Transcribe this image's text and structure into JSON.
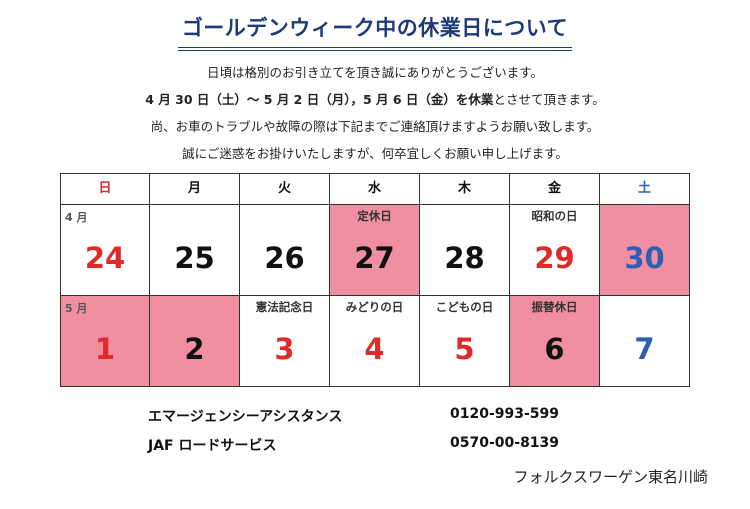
{
  "title": "ゴールデンウィーク中の休業日について",
  "notice": {
    "line1": "日頃は格別のお引き立てを頂き誠にありがとうございます。",
    "line2_bold": "4 月 30 日（土）～ 5 月 2 日（月），5 月 6 日（金）を休業",
    "line2_rest": "とさせて頂きます。",
    "line3": "尚、お車のトラブルや故障の際は下記までご連絡頂けますようお願い致します。",
    "line4": "誠にご迷惑をお掛けいたしますが、何卒宜しくお願い申し上げます。"
  },
  "calendar": {
    "weekdays": [
      "日",
      "月",
      "火",
      "水",
      "木",
      "金",
      "土"
    ],
    "weekday_colors": [
      "#e02a2a",
      "#111111",
      "#111111",
      "#111111",
      "#111111",
      "#111111",
      "#2c5fb5"
    ],
    "weeks": [
      [
        {
          "month": "4 月",
          "day": "24",
          "color": "red",
          "closed": false
        },
        {
          "day": "25",
          "color": "black",
          "closed": false
        },
        {
          "day": "26",
          "color": "black",
          "closed": false
        },
        {
          "holiday": "定休日",
          "day": "27",
          "color": "black",
          "closed": true
        },
        {
          "day": "28",
          "color": "black",
          "closed": false
        },
        {
          "holiday": "昭和の日",
          "day": "29",
          "color": "red",
          "closed": false
        },
        {
          "day": "30",
          "color": "blue",
          "closed": true
        }
      ],
      [
        {
          "month": "5 月",
          "day": "1",
          "color": "red",
          "closed": true
        },
        {
          "day": "2",
          "color": "black",
          "closed": true
        },
        {
          "holiday": "憲法記念日",
          "day": "3",
          "color": "red",
          "closed": false
        },
        {
          "holiday": "みどりの日",
          "day": "4",
          "color": "red",
          "closed": false
        },
        {
          "holiday": "こどもの日",
          "day": "5",
          "color": "red",
          "closed": false
        },
        {
          "holiday": "振替休日",
          "day": "6",
          "color": "black",
          "closed": true
        },
        {
          "day": "7",
          "color": "blue",
          "closed": false
        }
      ]
    ]
  },
  "contacts": [
    {
      "name": "エマージェンシーアシスタンス",
      "phone": "0120-993-599"
    },
    {
      "name": "JAF ロードサービス",
      "phone": "0570-00-8139"
    }
  ],
  "footer": "フォルクスワーゲン東名川崎"
}
